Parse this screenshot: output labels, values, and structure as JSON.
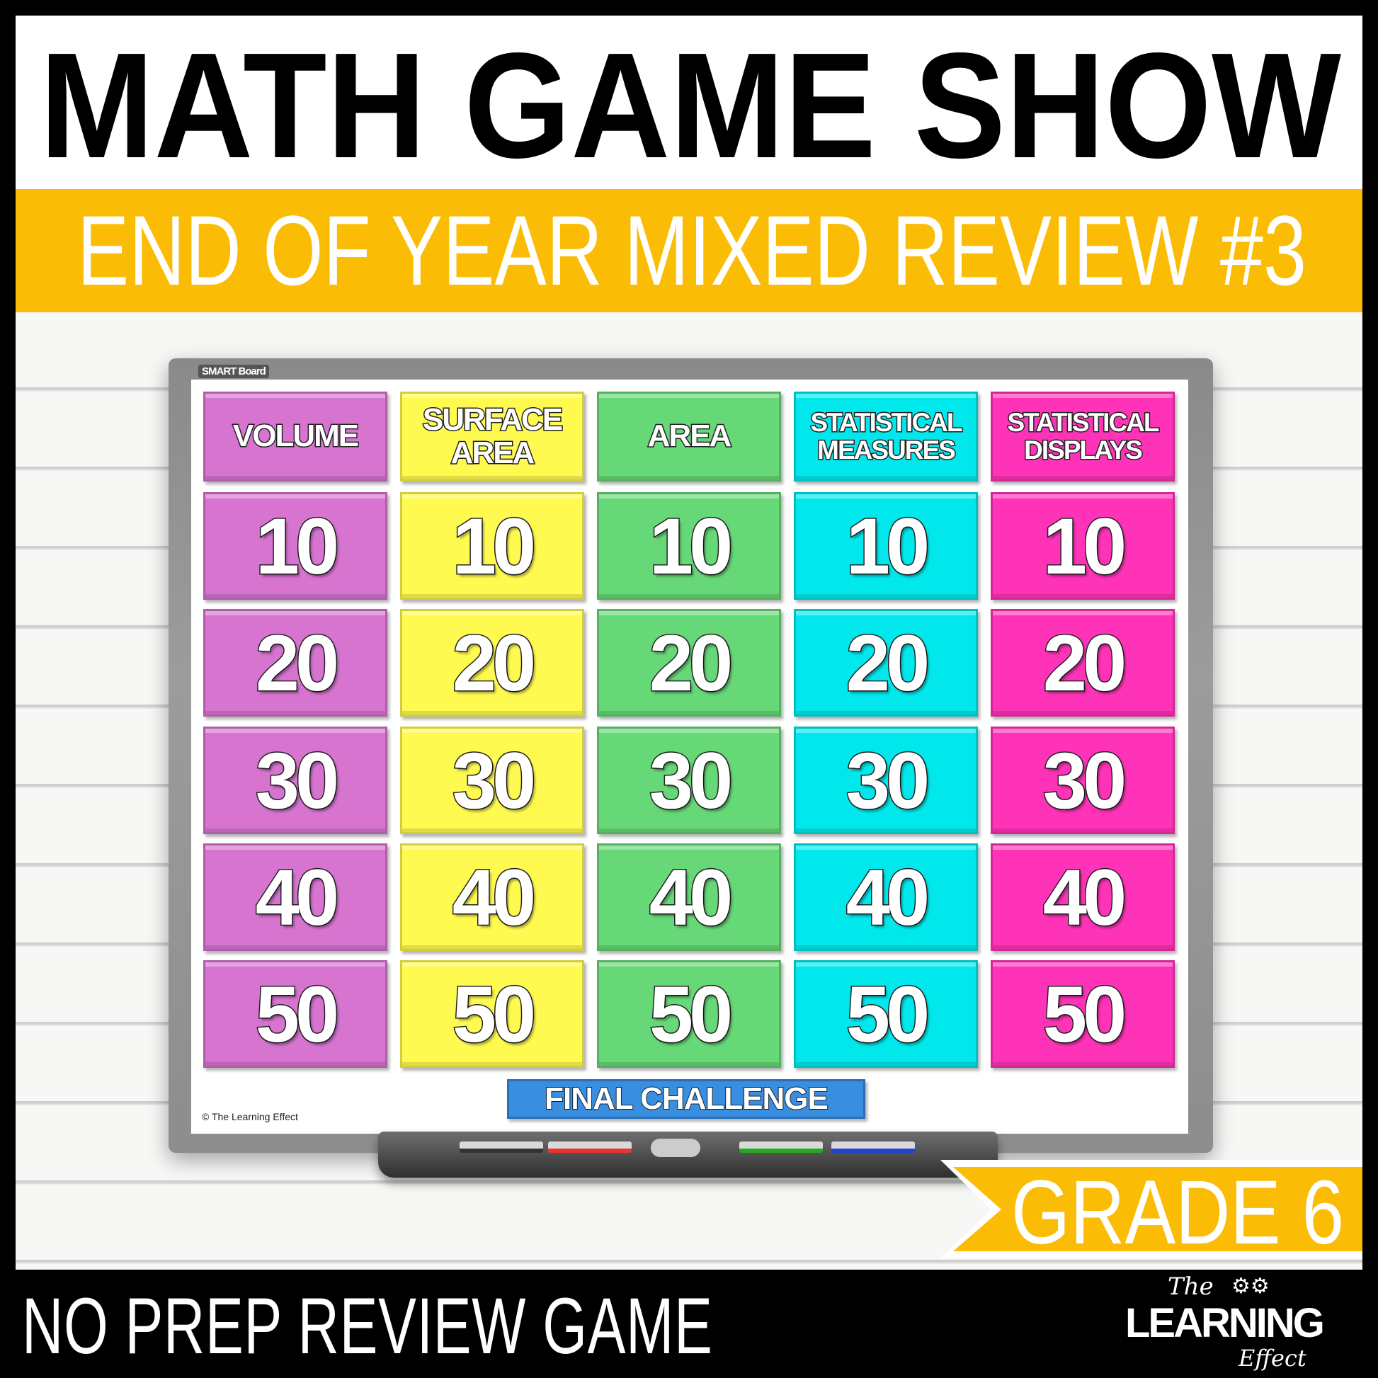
{
  "title": "MATH GAME SHOW",
  "subtitle": "END OF YEAR MIXED REVIEW #3",
  "board": {
    "brand": "SMART Board",
    "categories": [
      {
        "label": "VOLUME",
        "color": "#d674d0"
      },
      {
        "label": "SURFACE AREA",
        "color": "#fffa50"
      },
      {
        "label": "AREA",
        "color": "#66d877"
      },
      {
        "label": "STATISTICAL MEASURES",
        "color": "#00e8ec"
      },
      {
        "label": "STATISTICAL DISPLAYS",
        "color": "#ff33b8"
      }
    ],
    "point_values": [
      "10",
      "20",
      "30",
      "40",
      "50"
    ],
    "final_challenge": "FINAL CHALLENGE",
    "copyright": "© The Learning Effect"
  },
  "grade_badge": "GRADE 6",
  "tagline": "NO PREP REVIEW GAME",
  "logo": {
    "the": "The",
    "learning": "LEARNING",
    "effect": "Effect"
  },
  "colors": {
    "gold": "#fbbc05",
    "final_blue": "#3a8ee0"
  }
}
